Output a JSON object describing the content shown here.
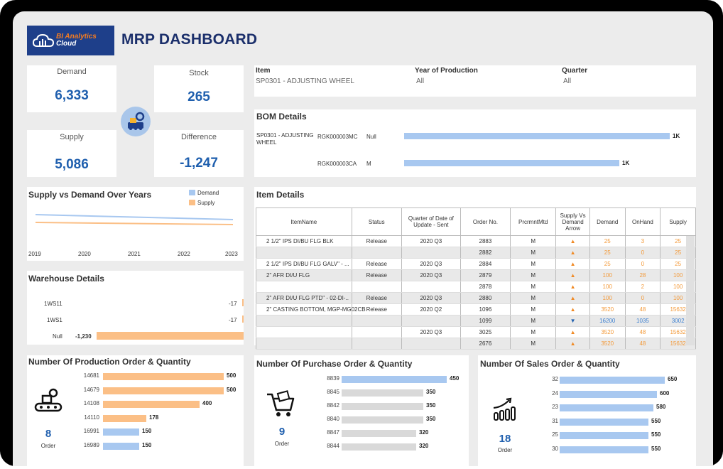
{
  "header": {
    "title": "MRP DASHBOARD",
    "logo_line1": "BI Analytics",
    "logo_line2": "Cloud"
  },
  "kpis": {
    "demand": {
      "label": "Demand",
      "value": "6,333"
    },
    "stock": {
      "label": "Stock",
      "value": "265"
    },
    "supply": {
      "label": "Supply",
      "value": "5,086"
    },
    "difference": {
      "label": "Difference",
      "value": "-1,247"
    }
  },
  "filters": {
    "item": {
      "label": "Item",
      "value": "SP0301 - ADJUSTING WHEEL"
    },
    "year": {
      "label": "Year of Production",
      "value": "All"
    },
    "quarter": {
      "label": "Quarter",
      "value": "All"
    }
  },
  "bom": {
    "title": "BOM Details",
    "item": "SP0301 - ADJUSTING WHEEL",
    "rows": [
      {
        "code": "RGK000003MC",
        "type": "Null",
        "value": "1K",
        "share": 1.0
      },
      {
        "code": "RGK000003CA",
        "type": "M",
        "value": "1K",
        "share": 0.81
      }
    ]
  },
  "supply_vs_demand": {
    "title": "Supply vs Demand Over Years",
    "legend": [
      "Demand",
      "Supply"
    ],
    "years": [
      "2019",
      "2020",
      "2021",
      "2022",
      "2023"
    ]
  },
  "warehouse": {
    "title": "Warehouse Details",
    "rows": [
      {
        "name": "1WS11",
        "value": "-17"
      },
      {
        "name": "1WS1",
        "value": "-17"
      },
      {
        "name": "Null",
        "value": "-1,230"
      }
    ]
  },
  "item_details": {
    "title": "Item Details",
    "columns": [
      "ItemName",
      "Status",
      "Quarter of Date of Update - Sent",
      "Order No.",
      "PrcrmntMtd",
      "Supply Vs Demand Arrow",
      "Demand",
      "OnHand",
      "Supply"
    ],
    "rows": [
      [
        "2 1/2\" IPS DI/BU FLG BLK",
        "Release",
        "2020 Q3",
        "2883",
        "M",
        "▲",
        "25",
        "3",
        "25"
      ],
      [
        "",
        "",
        "",
        "2882",
        "M",
        "▲",
        "25",
        "0",
        "25"
      ],
      [
        "2 1/2\" IPS DI/BU FLG GALV\" - ...",
        "Release",
        "2020 Q3",
        "2884",
        "M",
        "▲",
        "25",
        "0",
        "25"
      ],
      [
        "2\" AFR DI/U FLG",
        "Release",
        "2020 Q3",
        "2879",
        "M",
        "▲",
        "100",
        "28",
        "100"
      ],
      [
        "",
        "",
        "",
        "2878",
        "M",
        "▲",
        "100",
        "2",
        "100"
      ],
      [
        "2\" AFR DI/U FLG PTD\" - 02-DI-..",
        "Release",
        "2020 Q3",
        "2880",
        "M",
        "▲",
        "100",
        "0",
        "100"
      ],
      [
        "2\" CASTING BOTTOM, MGP-MG02CB",
        "Release",
        "2020 Q2",
        "1096",
        "M",
        "▲",
        "3520",
        "48",
        "15632"
      ],
      [
        "",
        "",
        "",
        "1099",
        "M",
        "▼",
        "16200",
        "1035",
        "3002"
      ],
      [
        "",
        "",
        "2020 Q3",
        "3025",
        "M",
        "▲",
        "3520",
        "48",
        "15632"
      ],
      [
        "",
        "",
        "",
        "2676",
        "M",
        "▲",
        "3520",
        "48",
        "15632"
      ]
    ]
  },
  "production": {
    "title": "Number Of Production Order  & Quantity",
    "count": "8",
    "count_label": "Order",
    "rows": [
      {
        "id": "14681",
        "value": "500",
        "color": "orange",
        "qty": 500
      },
      {
        "id": "14679",
        "value": "500",
        "color": "orange",
        "qty": 500
      },
      {
        "id": "14108",
        "value": "400",
        "color": "orange",
        "qty": 400
      },
      {
        "id": "14110",
        "value": "178",
        "color": "orange",
        "qty": 178
      },
      {
        "id": "16991",
        "value": "150",
        "color": "blue",
        "qty": 150
      },
      {
        "id": "16989",
        "value": "150",
        "color": "blue",
        "qty": 150
      }
    ]
  },
  "purchase": {
    "title": "Number Of Purchase Order & Quantity",
    "count": "9",
    "count_label": "Order",
    "rows": [
      {
        "id": "8839",
        "value": "450",
        "color": "blue",
        "qty": 450
      },
      {
        "id": "8845",
        "value": "350",
        "color": "gray",
        "qty": 350
      },
      {
        "id": "8842",
        "value": "350",
        "color": "gray",
        "qty": 350
      },
      {
        "id": "8840",
        "value": "350",
        "color": "gray",
        "qty": 350
      },
      {
        "id": "8847",
        "value": "320",
        "color": "gray",
        "qty": 320
      },
      {
        "id": "8844",
        "value": "320",
        "color": "gray",
        "qty": 320
      }
    ]
  },
  "sales": {
    "title": "Number Of  Sales Order & Quantity",
    "count": "18",
    "count_label": "Order",
    "rows": [
      {
        "id": "32",
        "value": "650",
        "color": "blue",
        "qty": 650
      },
      {
        "id": "24",
        "value": "600",
        "color": "blue",
        "qty": 600
      },
      {
        "id": "23",
        "value": "580",
        "color": "blue",
        "qty": 580
      },
      {
        "id": "31",
        "value": "550",
        "color": "blue",
        "qty": 550
      },
      {
        "id": "25",
        "value": "550",
        "color": "blue",
        "qty": 550
      },
      {
        "id": "30",
        "value": "550",
        "color": "blue",
        "qty": 550
      }
    ]
  },
  "colors": {
    "accent": "#1f5fae",
    "demand": "#a8c8f0",
    "supply": "#fbbf86",
    "brand": "#1e3f8a"
  }
}
